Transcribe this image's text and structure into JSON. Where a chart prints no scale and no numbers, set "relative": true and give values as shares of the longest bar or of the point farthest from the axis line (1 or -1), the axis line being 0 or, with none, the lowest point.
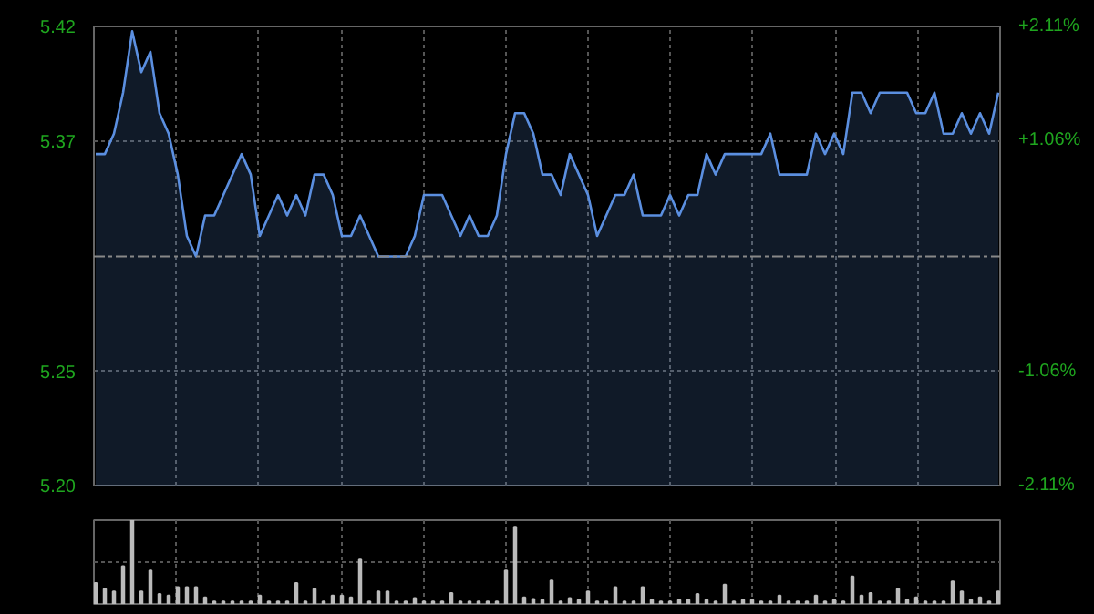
{
  "chart_data": [
    {
      "type": "area",
      "categories": [
        null,
        null,
        null,
        null,
        null,
        null,
        null,
        null,
        null,
        null,
        null,
        null,
        null,
        null,
        null,
        null,
        null,
        null,
        null,
        null,
        null,
        null,
        null,
        null,
        null,
        null,
        null,
        null,
        null,
        null,
        null,
        null,
        null,
        null,
        null,
        null,
        null,
        null,
        null,
        null,
        null,
        null,
        null,
        null,
        null,
        null,
        null,
        null,
        null,
        null,
        null,
        null,
        null,
        null,
        null,
        null,
        null,
        null,
        null,
        null,
        null,
        null,
        null,
        null,
        null,
        null,
        null,
        null,
        null,
        null,
        null,
        null,
        null,
        null,
        null,
        null,
        null,
        null,
        null,
        null,
        null,
        null,
        null,
        null,
        null,
        null,
        null,
        null,
        null,
        null,
        null,
        null,
        null,
        null,
        null,
        null,
        null,
        null,
        null,
        null
      ],
      "series": [
        {
          "color": "#5b8fe0",
          "values": [
            5.36,
            5.36,
            5.37,
            5.39,
            5.42,
            5.4,
            5.41,
            5.38,
            5.37,
            5.35,
            5.32,
            5.31,
            5.33,
            5.33,
            5.34,
            5.35,
            5.36,
            5.35,
            5.32,
            5.33,
            5.34,
            5.33,
            5.34,
            5.33,
            5.35,
            5.35,
            5.34,
            5.32,
            5.32,
            5.33,
            5.32,
            5.31,
            5.31,
            5.31,
            5.31,
            5.32,
            5.34,
            5.34,
            5.34,
            5.33,
            5.32,
            5.33,
            5.32,
            5.32,
            5.33,
            5.36,
            5.38,
            5.38,
            5.37,
            5.35,
            5.35,
            5.34,
            5.36,
            5.35,
            5.34,
            5.32,
            5.33,
            5.34,
            5.34,
            5.35,
            5.33,
            5.33,
            5.33,
            5.34,
            5.33,
            5.34,
            5.34,
            5.36,
            5.35,
            5.36,
            5.36,
            5.36,
            5.36,
            5.36,
            5.37,
            5.35,
            5.35,
            5.35,
            5.35,
            5.37,
            5.36,
            5.37,
            5.36,
            5.39,
            5.39,
            5.38,
            5.39,
            5.39,
            5.39,
            5.39,
            5.38,
            5.38,
            5.39,
            5.37,
            5.37,
            5.38,
            5.37,
            5.38,
            5.37,
            5.39
          ]
        }
      ],
      "ylim": [
        5.198,
        5.4224
      ],
      "yticks": [
        {
          "value": 5.198,
          "label": "5.20"
        },
        {
          "value": 5.2537,
          "label": "5.25"
        },
        {
          "value": 5.3663,
          "label": "5.37"
        },
        {
          "value": 5.4224,
          "label": "5.42"
        }
      ],
      "y2lim": [
        -2.11,
        2.11
      ],
      "y2ticks": [
        {
          "value": -2.11,
          "label": "-2.11%"
        },
        {
          "value": -1.06,
          "label": "-1.06%"
        },
        {
          "value": 1.06,
          "label": "+1.06%"
        },
        {
          "value": 2.11,
          "label": "+2.11%"
        }
      ],
      "ref_lines": [
        {
          "axis": "y",
          "value": 5.31,
          "label": null,
          "line_style": "dashed",
          "color": "#888888"
        }
      ],
      "grid": true,
      "tick_labels": "y"
    },
    {
      "type": "bar",
      "relative": true,
      "color": "#bbbbbb",
      "grid": true,
      "tick_labels": false,
      "categories": [
        null,
        null,
        null,
        null,
        null,
        null,
        null,
        null,
        null,
        null,
        null,
        null,
        null,
        null,
        null,
        null,
        null,
        null,
        null,
        null,
        null,
        null,
        null,
        null,
        null,
        null,
        null,
        null,
        null,
        null,
        null,
        null,
        null,
        null,
        null,
        null,
        null,
        null,
        null,
        null,
        null,
        null,
        null,
        null,
        null,
        null,
        null,
        null,
        null,
        null,
        null,
        null,
        null,
        null,
        null,
        null,
        null,
        null,
        null,
        null,
        null,
        null,
        null,
        null,
        null,
        null,
        null,
        null,
        null,
        null,
        null,
        null,
        null,
        null,
        null,
        null,
        null,
        null,
        null,
        null,
        null,
        null,
        null,
        null,
        null,
        null,
        null,
        null,
        null,
        null,
        null,
        null,
        null,
        null,
        null,
        null,
        null,
        null,
        null,
        null
      ],
      "values": [
        0.25,
        0.18,
        0.15,
        0.45,
        1.0,
        0.15,
        0.4,
        0.12,
        0.1,
        0.2,
        0.2,
        0.2,
        0.08,
        0.03,
        0.03,
        0.03,
        0.03,
        0.03,
        0.1,
        0.03,
        0.03,
        0.03,
        0.25,
        0.03,
        0.18,
        0.03,
        0.1,
        0.1,
        0.08,
        0.53,
        0.03,
        0.15,
        0.15,
        0.03,
        0.03,
        0.07,
        0.03,
        0.03,
        0.03,
        0.13,
        0.03,
        0.03,
        0.03,
        0.03,
        0.03,
        0.4,
        0.92,
        0.08,
        0.06,
        0.05,
        0.28,
        0.03,
        0.07,
        0.05,
        0.15,
        0.03,
        0.03,
        0.2,
        0.03,
        0.03,
        0.2,
        0.05,
        0.03,
        0.03,
        0.05,
        0.05,
        0.12,
        0.05,
        0.03,
        0.23,
        0.03,
        0.05,
        0.05,
        0.03,
        0.03,
        0.1,
        0.03,
        0.03,
        0.03,
        0.1,
        0.03,
        0.05,
        0.03,
        0.33,
        0.1,
        0.13,
        0.03,
        0.03,
        0.18,
        0.05,
        0.08,
        0.03,
        0.03,
        0.03,
        0.27,
        0.15,
        0.05,
        0.08,
        0.03,
        0.15
      ]
    }
  ]
}
